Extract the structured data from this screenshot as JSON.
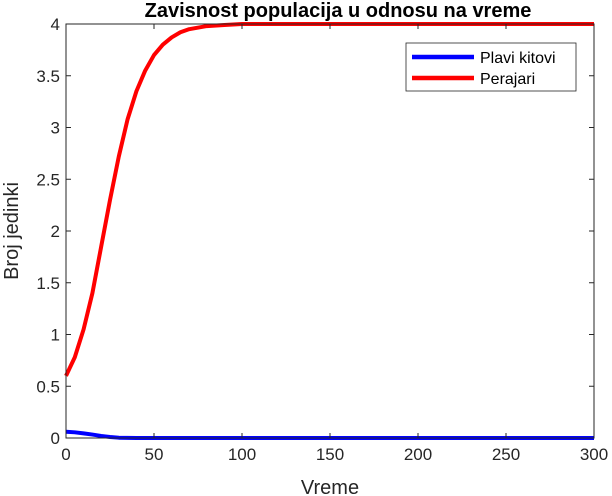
{
  "chart_data": {
    "type": "line",
    "title": "Zavisnost populacija u odnosu na vreme",
    "xlabel": "Vreme",
    "ylabel": "Broj jedinki",
    "xlim": [
      0,
      300
    ],
    "ylim": [
      0,
      4
    ],
    "xticks": [
      0,
      50,
      100,
      150,
      200,
      250,
      300
    ],
    "yticks": [
      0,
      0.5,
      1,
      1.5,
      2,
      2.5,
      3,
      3.5,
      4
    ],
    "xtick_labels": [
      "0",
      "50",
      "100",
      "150",
      "200",
      "250",
      "300"
    ],
    "ytick_labels": [
      "0",
      "0.5",
      "1",
      "1.5",
      "2",
      "2.5",
      "3",
      "3.5",
      "4"
    ],
    "grid": false,
    "legend_position": "top-right",
    "series": [
      {
        "name": "Plavi kitovi",
        "color": "#0000ff",
        "x": [
          0,
          5,
          10,
          15,
          20,
          25,
          30,
          40,
          60,
          100,
          150,
          200,
          250,
          300
        ],
        "y": [
          0.06,
          0.055,
          0.045,
          0.033,
          0.02,
          0.01,
          0.003,
          0.0,
          0.0,
          0.0,
          0.0,
          0.0,
          0.0,
          0.0
        ]
      },
      {
        "name": "Perajari",
        "color": "#ff0000",
        "x": [
          0,
          5,
          10,
          15,
          20,
          25,
          30,
          35,
          40,
          45,
          50,
          55,
          60,
          65,
          70,
          80,
          90,
          100,
          120,
          150,
          200,
          250,
          300
        ],
        "y": [
          0.6,
          0.78,
          1.05,
          1.4,
          1.85,
          2.3,
          2.72,
          3.08,
          3.35,
          3.55,
          3.7,
          3.8,
          3.87,
          3.92,
          3.95,
          3.98,
          3.99,
          4.0,
          4.0,
          4.0,
          4.0,
          4.0,
          4.0
        ]
      }
    ]
  }
}
